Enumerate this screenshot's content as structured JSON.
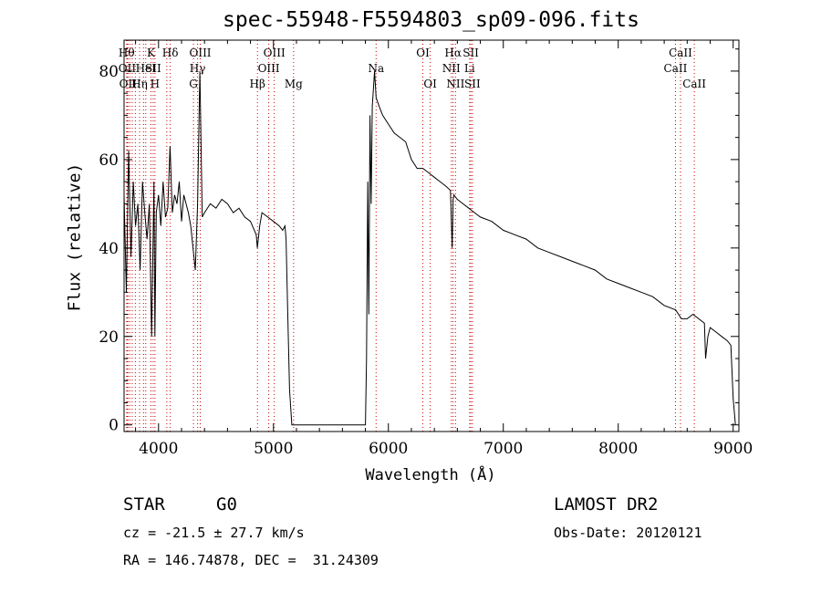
{
  "chart_data": {
    "type": "line",
    "title": "spec-55948-F5594803_sp09-096.fits",
    "xlabel": "Wavelength (Å)",
    "ylabel": "Flux (relative)",
    "xlim": [
      3700,
      9050
    ],
    "ylim": [
      -1.5,
      87
    ],
    "xticks": [
      4000,
      5000,
      6000,
      7000,
      8000,
      9000
    ],
    "yticks": [
      0,
      20,
      40,
      60,
      80
    ],
    "grid": false,
    "line_color": "#000000",
    "marker_color": "#cc0000",
    "series": [
      {
        "values_x": [
          3700,
          3720,
          3740,
          3760,
          3780,
          3800,
          3820,
          3840,
          3860,
          3880,
          3900,
          3920,
          3940,
          3960,
          3968,
          3980,
          4000,
          4020,
          4040,
          4060,
          4080,
          4100,
          4120,
          4140,
          4160,
          4180,
          4200,
          4220,
          4240,
          4260,
          4280,
          4300,
          4320,
          4340,
          4360,
          4380,
          4400,
          4450,
          4500,
          4550,
          4600,
          4650,
          4700,
          4750,
          4800,
          4850,
          4860,
          4880,
          4900,
          4950,
          5000,
          5050,
          5080,
          5100,
          5110,
          5120,
          5140,
          5160,
          5180,
          5800,
          5810,
          5820,
          5830,
          5840,
          5850,
          5860,
          5880,
          5893,
          5920,
          5950,
          6000,
          6050,
          6100,
          6150,
          6200,
          6250,
          6300,
          6350,
          6400,
          6450,
          6500,
          6540,
          6555,
          6563,
          6570,
          6600,
          6650,
          6700,
          6750,
          6800,
          6900,
          7000,
          7100,
          7200,
          7300,
          7400,
          7500,
          7600,
          7700,
          7800,
          7900,
          8000,
          8100,
          8200,
          8300,
          8400,
          8500,
          8550,
          8600,
          8650,
          8700,
          8750,
          8760,
          8780,
          8800,
          8850,
          8900,
          8950,
          8980,
          9000,
          9020
        ],
        "values_y": [
          52,
          30,
          62,
          38,
          55,
          45,
          50,
          35,
          55,
          48,
          42,
          50,
          20,
          55,
          20,
          48,
          52,
          45,
          55,
          47,
          49,
          63,
          48,
          52,
          50,
          55,
          46,
          52,
          50,
          48,
          45,
          40,
          35,
          50,
          80,
          47,
          48,
          50,
          49,
          51,
          50,
          48,
          49,
          47,
          46,
          43,
          40,
          45,
          48,
          47,
          46,
          45,
          44,
          45,
          42,
          30,
          8,
          0,
          0,
          0,
          15,
          55,
          25,
          70,
          50,
          72,
          80,
          74,
          72,
          70,
          68,
          66,
          65,
          64,
          60,
          58,
          58,
          57,
          56,
          55,
          54,
          53,
          40,
          51,
          52,
          51,
          50,
          49,
          48,
          47,
          46,
          44,
          43,
          42,
          40,
          39,
          38,
          37,
          36,
          35,
          33,
          32,
          31,
          30,
          29,
          27,
          26,
          24,
          24,
          25,
          24,
          23,
          15,
          20,
          22,
          21,
          20,
          19,
          18,
          6,
          0
        ]
      }
    ],
    "lines": [
      {
        "x": 3722,
        "label": "Hθ",
        "row": 0
      },
      {
        "x": 3727,
        "label": "OII",
        "row": 1
      },
      {
        "x": 3734,
        "label": "OII",
        "row": 2
      },
      {
        "x": 3750,
        "label": "",
        "row": -1
      },
      {
        "x": 3771,
        "label": "",
        "row": -1
      },
      {
        "x": 3798,
        "label": "",
        "row": -1
      },
      {
        "x": 3835,
        "label": "Hη",
        "row": 2
      },
      {
        "x": 3869,
        "label": "",
        "row": -1
      },
      {
        "x": 3889,
        "label": "HeI",
        "row": 1
      },
      {
        "x": 3934,
        "label": "K",
        "row": 0
      },
      {
        "x": 3953,
        "label": "SII",
        "row": 1
      },
      {
        "x": 3969,
        "label": "H",
        "row": 2
      },
      {
        "x": 4072,
        "label": "",
        "row": -1
      },
      {
        "x": 4102,
        "label": "Hδ",
        "row": 0
      },
      {
        "x": 4304,
        "label": "G",
        "row": 2
      },
      {
        "x": 4340,
        "label": "Hγ",
        "row": 1
      },
      {
        "x": 4363,
        "label": "OIII",
        "row": 0
      },
      {
        "x": 4861,
        "label": "Hβ",
        "row": 2
      },
      {
        "x": 4959,
        "label": "OIII",
        "row": 1
      },
      {
        "x": 5007,
        "label": "OIII",
        "row": 0
      },
      {
        "x": 5175,
        "label": "Mg",
        "row": 2
      },
      {
        "x": 5893,
        "label": "Na",
        "row": 1
      },
      {
        "x": 6300,
        "label": "OI",
        "row": 0
      },
      {
        "x": 6364,
        "label": "OI",
        "row": 2
      },
      {
        "x": 6548,
        "label": "NII",
        "row": 1
      },
      {
        "x": 6563,
        "label": "Hα",
        "row": 0
      },
      {
        "x": 6584,
        "label": "NII",
        "row": 2
      },
      {
        "x": 6707,
        "label": "Li",
        "row": 1
      },
      {
        "x": 6717,
        "label": "SII",
        "row": 0
      },
      {
        "x": 6731,
        "label": "SII",
        "row": 2
      },
      {
        "x": 8498,
        "label": "CaII",
        "row": 1
      },
      {
        "x": 8542,
        "label": "CaII",
        "row": 0
      },
      {
        "x": 8662,
        "label": "CaII",
        "row": 2
      }
    ]
  },
  "info": {
    "object_class": "STAR",
    "subclass": "G0",
    "survey": "LAMOST DR2",
    "cz": "cz = -21.5 ± 27.7 km/s",
    "obs_date": "Obs-Date: 20120121",
    "coords": "RA = 146.74878, DEC =  31.24309"
  }
}
